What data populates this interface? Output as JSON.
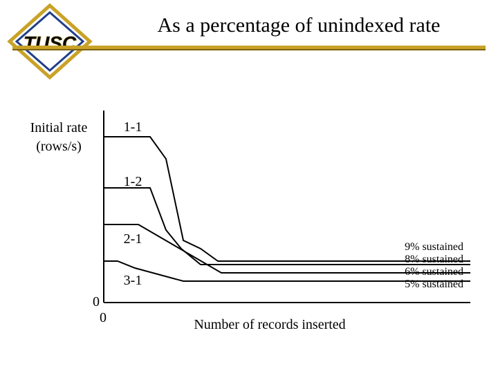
{
  "header": {
    "title": "As a percentage of unindexed rate",
    "logo": "TUSC"
  },
  "axes": {
    "y_label_lines": [
      "Initial rate",
      "(rows/s)"
    ],
    "y_origin": "0",
    "x_origin": "0",
    "x_label": "Number of records inserted"
  },
  "curves": [
    {
      "label": "1-1",
      "end_label": "9% sustained"
    },
    {
      "label": "1-2",
      "end_label": "8% sustained"
    },
    {
      "label": "2-1",
      "end_label": "6% sustained"
    },
    {
      "label": "3-1",
      "end_label": "5% sustained"
    }
  ]
}
